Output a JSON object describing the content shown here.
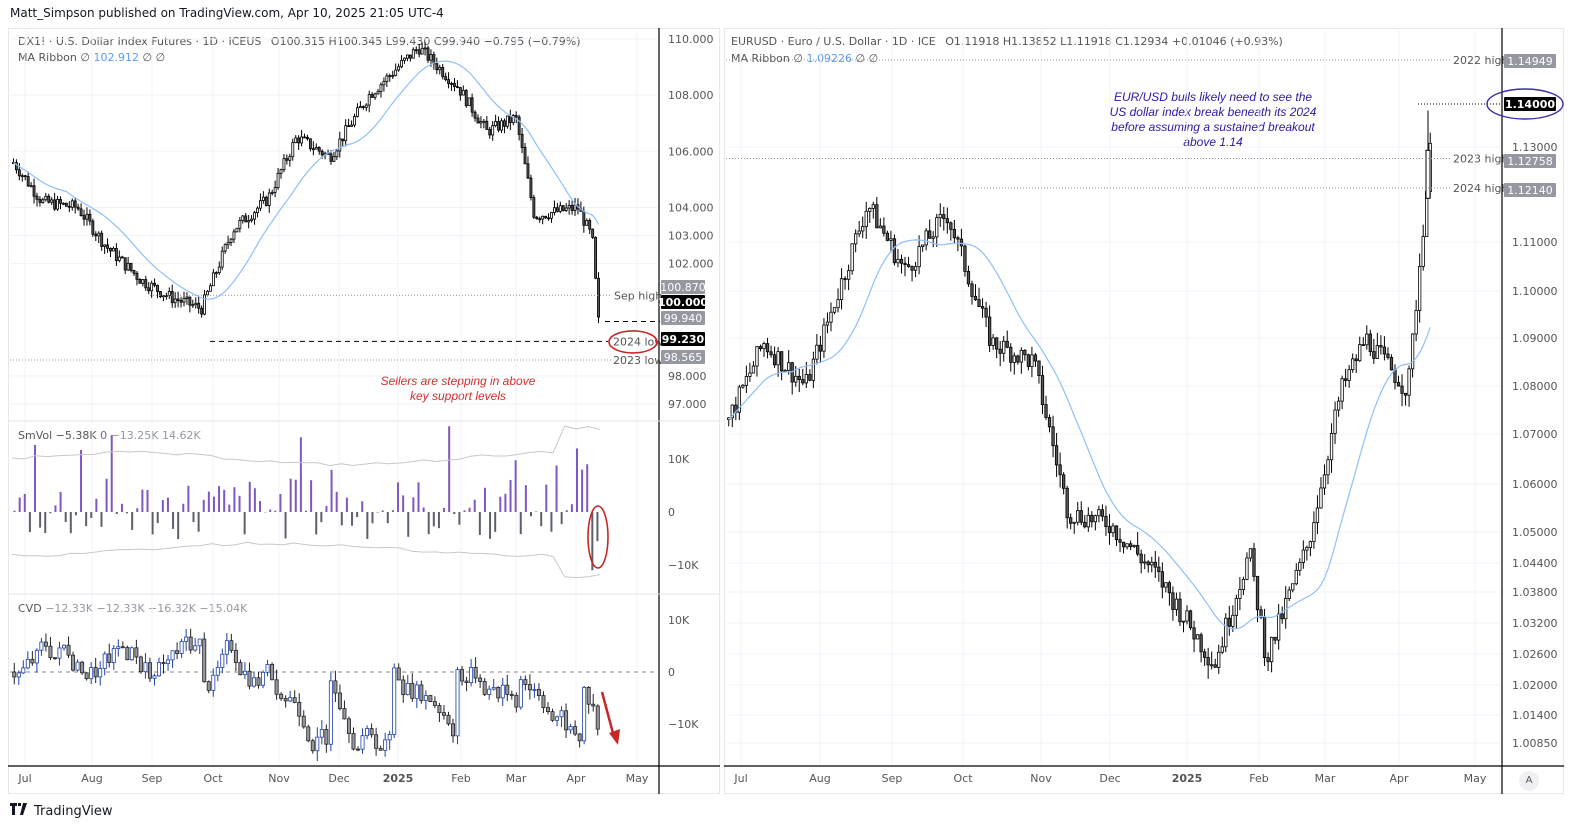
{
  "header": {
    "published": "Matt_Simpson published on TradingView.com, Apr 10, 2025 21:05 UTC-4"
  },
  "footer": {
    "brand": "TradingView",
    "logo": "17"
  },
  "left": {
    "legend": {
      "symbol": "DX1! · U.S. Dollar Index Futures · 1D · ICEUS",
      "ohlc": "O100.315  H100.345  L99.430  C99.940  −0.795 (−0.79%)",
      "ma_label": "MA Ribbon",
      "ma_value": "102.912",
      "ma_null": "∅",
      "ma_null2": "∅",
      "ma_null3": "∅"
    },
    "smvol_legend": {
      "name": "SmVol",
      "v1": "−5.38K",
      "v2": "0",
      "v3": "−13.25K",
      "v4": "14.62K"
    },
    "cvd_legend": {
      "name": "CVD",
      "v1": "−12.33K",
      "v2": "−12.33K",
      "v3": "−16.32K",
      "v4": "−15.04K"
    },
    "annotation": "Sellers are stepping in above key support levels",
    "annotation_color": "#d32f2f"
  },
  "right": {
    "legend": {
      "symbol": "EURUSD · Euro / U.S. Dollar · 1D · ICE",
      "ohlc": "O1.11918  H1.13852  L1.11918  C1.12934  +0.01046 (+0.93%)",
      "ma_label": "MA Ribbon",
      "ma_value": "1.09226",
      "ma_null": "∅",
      "ma_null2": "∅",
      "ma_null3": "∅"
    },
    "annotation": "EUR/USD bulls likely need to see the US dollar index break beneath its 2024 before assuming a sustained breakout above 1.14",
    "annotation_color": "#2a1aa6"
  },
  "auto_scale_button": "A",
  "chart_data": [
    {
      "type": "candlestick",
      "title": "DX1! · U.S. Dollar Index Futures · 1D · ICEUS",
      "ohlc_last": {
        "open": 100.315,
        "high": 100.345,
        "low": 99.43,
        "close": 99.94,
        "change": -0.795,
        "change_pct": -0.79
      },
      "ma_ribbon": 102.912,
      "x_ticks": [
        "Jul",
        "Aug",
        "Sep",
        "Oct",
        "Nov",
        "Dec",
        "2025",
        "Feb",
        "Mar",
        "Apr",
        "May"
      ],
      "y_ticks": [
        110.0,
        108.0,
        106.0,
        104.0,
        103.0,
        102.0,
        98.0,
        97.0
      ],
      "ylim": [
        96.6,
        110.3
      ],
      "price_tags": [
        {
          "label": "Sep high",
          "value": 100.87,
          "style": "grey"
        },
        {
          "label": "",
          "value": 100.0,
          "style": "black"
        },
        {
          "label": "",
          "value": 99.94,
          "style": "grey"
        },
        {
          "label": "2024 low",
          "value": 99.23,
          "style": "black"
        },
        {
          "label": "2023 low",
          "value": 98.565,
          "style": "grey"
        }
      ],
      "approx_close_series": [
        {
          "date": "2024-07-01",
          "close": 105.6
        },
        {
          "date": "2024-07-15",
          "close": 104.2
        },
        {
          "date": "2024-08-01",
          "close": 104.0
        },
        {
          "date": "2024-08-15",
          "close": 102.6
        },
        {
          "date": "2024-09-01",
          "close": 101.4
        },
        {
          "date": "2024-09-15",
          "close": 100.8
        },
        {
          "date": "2024-09-30",
          "close": 100.4
        },
        {
          "date": "2024-10-15",
          "close": 103.2
        },
        {
          "date": "2024-11-01",
          "close": 104.3
        },
        {
          "date": "2024-11-15",
          "close": 106.5
        },
        {
          "date": "2024-12-01",
          "close": 105.8
        },
        {
          "date": "2024-12-20",
          "close": 108.0
        },
        {
          "date": "2025-01-13",
          "close": 109.7
        },
        {
          "date": "2025-02-01",
          "close": 108.3
        },
        {
          "date": "2025-02-15",
          "close": 106.7
        },
        {
          "date": "2025-03-01",
          "close": 107.2
        },
        {
          "date": "2025-03-10",
          "close": 103.7
        },
        {
          "date": "2025-03-31",
          "close": 104.0
        },
        {
          "date": "2025-04-07",
          "close": 102.9
        },
        {
          "date": "2025-04-10",
          "close": 99.94
        }
      ]
    },
    {
      "type": "bar",
      "title": "SmVol",
      "values_legend": [
        -5.38,
        0,
        -13.25,
        14.62
      ],
      "unit": "K",
      "y_ticks": [
        "10K",
        "0",
        "−10K"
      ]
    },
    {
      "type": "candlestick",
      "title": "CVD",
      "values_legend": [
        -12.33,
        -12.33,
        -16.32,
        -15.04
      ],
      "unit": "K",
      "y_ticks": [
        "10K",
        "0",
        "−10K"
      ]
    },
    {
      "type": "candlestick",
      "title": "EURUSD · Euro / U.S. Dollar · 1D · ICE",
      "ohlc_last": {
        "open": 1.11918,
        "high": 1.13852,
        "low": 1.11918,
        "close": 1.12934,
        "change": 0.01046,
        "change_pct": 0.93
      },
      "ma_ribbon": 1.09226,
      "x_ticks": [
        "Jul",
        "Aug",
        "Sep",
        "Oct",
        "Nov",
        "Dec",
        "2025",
        "Feb",
        "Mar",
        "Apr",
        "May"
      ],
      "y_ticks": [
        1.13,
        1.11,
        1.1,
        1.09,
        1.08,
        1.07,
        1.06,
        1.05,
        1.044,
        1.038,
        1.032,
        1.026,
        1.02,
        1.014,
        1.0085
      ],
      "price_tags": [
        {
          "label": "2022 high",
          "value": 1.14949,
          "style": "grey"
        },
        {
          "label": "",
          "value": 1.14,
          "style": "black"
        },
        {
          "label": "2023 high",
          "value": 1.12758,
          "style": "grey"
        },
        {
          "label": "2024 high",
          "value": 1.1214,
          "style": "grey"
        }
      ],
      "approx_close_series": [
        {
          "date": "2024-07-01",
          "close": 1.073
        },
        {
          "date": "2024-07-15",
          "close": 1.089
        },
        {
          "date": "2024-08-01",
          "close": 1.08
        },
        {
          "date": "2024-08-15",
          "close": 1.101
        },
        {
          "date": "2024-08-26",
          "close": 1.118
        },
        {
          "date": "2024-09-10",
          "close": 1.104
        },
        {
          "date": "2024-09-27",
          "close": 1.116
        },
        {
          "date": "2024-10-15",
          "close": 1.089
        },
        {
          "date": "2024-11-01",
          "close": 1.085
        },
        {
          "date": "2024-11-15",
          "close": 1.054
        },
        {
          "date": "2024-12-01",
          "close": 1.052
        },
        {
          "date": "2024-12-20",
          "close": 1.042
        },
        {
          "date": "2025-01-13",
          "close": 1.024
        },
        {
          "date": "2025-01-27",
          "close": 1.046
        },
        {
          "date": "2025-02-03",
          "close": 1.025
        },
        {
          "date": "2025-02-20",
          "close": 1.048
        },
        {
          "date": "2025-03-05",
          "close": 1.079
        },
        {
          "date": "2025-03-15",
          "close": 1.09
        },
        {
          "date": "2025-04-01",
          "close": 1.079
        },
        {
          "date": "2025-04-10",
          "close": 1.129
        }
      ]
    }
  ]
}
